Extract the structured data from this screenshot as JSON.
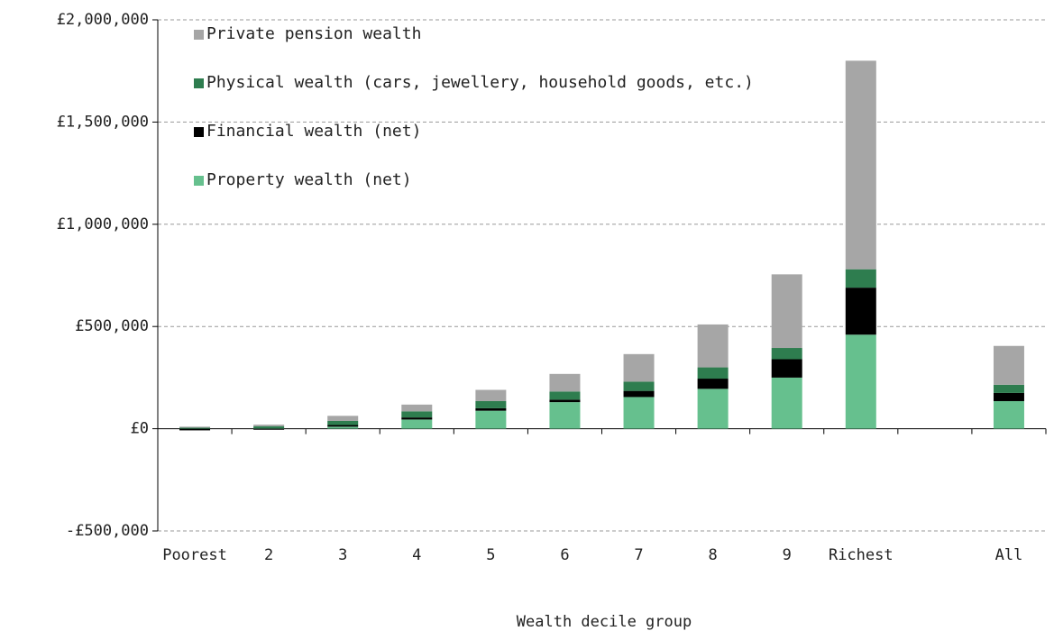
{
  "chart_data": {
    "type": "stacked_bar",
    "x_label": "Wealth decile group",
    "categories": [
      "Poorest",
      "2",
      "3",
      "4",
      "5",
      "6",
      "7",
      "8",
      "9",
      "Richest",
      null,
      "All"
    ],
    "series": [
      {
        "name": "Property wealth (net)",
        "color": "#66c08e",
        "values": [
          0,
          2000,
          10000,
          45000,
          88000,
          130000,
          155000,
          195000,
          250000,
          460000,
          null,
          135000
        ]
      },
      {
        "name": "Financial wealth (net)",
        "color": "#000000",
        "values": [
          -8000,
          -5000,
          8000,
          10000,
          12000,
          12000,
          30000,
          50000,
          90000,
          230000,
          null,
          40000
        ]
      },
      {
        "name": "Physical wealth (cars, jewellery, household goods, etc.)",
        "color": "#2e7d4f",
        "values": [
          5000,
          10000,
          20000,
          30000,
          35000,
          40000,
          45000,
          55000,
          55000,
          90000,
          null,
          40000
        ]
      },
      {
        "name": "Private pension wealth",
        "color": "#a6a6a6",
        "values": [
          5000,
          8000,
          25000,
          33000,
          55000,
          86000,
          135000,
          210000,
          360000,
          1020000,
          null,
          190000
        ]
      }
    ],
    "ylim": [
      -500000,
      2000000
    ],
    "yticks": [
      {
        "value": -500000,
        "label": "-£500,000"
      },
      {
        "value": 0,
        "label": "£0"
      },
      {
        "value": 500000,
        "label": "£500,000"
      },
      {
        "value": 1000000,
        "label": "£1,000,000"
      },
      {
        "value": 1500000,
        "label": "£1,500,000"
      },
      {
        "value": 2000000,
        "label": "£2,000,000"
      }
    ],
    "grid": true
  }
}
